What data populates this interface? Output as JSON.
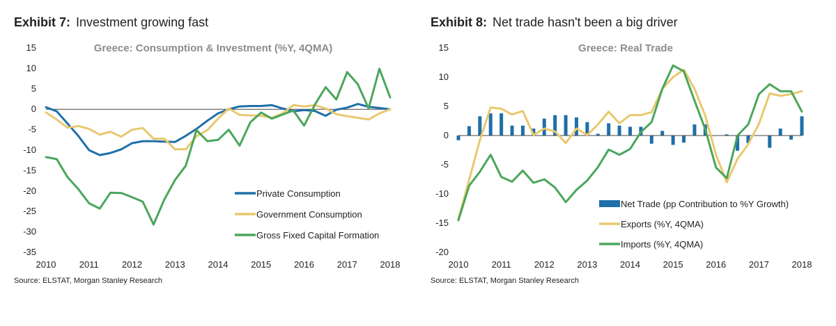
{
  "exhibits": [
    {
      "number": "Exhibit 7:",
      "heading": "Investment growing fast",
      "source": "Source: ELSTAT, Morgan Stanley Research"
    },
    {
      "number": "Exhibit 8:",
      "heading": "Net trade hasn't been a big driver",
      "source": "Source: ELSTAT, Morgan Stanley Research"
    }
  ],
  "chart_data": [
    {
      "type": "line",
      "title": "Greece: Consumption & Investment (%Y, 4QMA)",
      "xlabel": "",
      "ylabel": "",
      "xlim": [
        2010,
        2018
      ],
      "ylim": [
        -35,
        15
      ],
      "x_ticks": [
        "2010",
        "2011",
        "2012",
        "2013",
        "2014",
        "2015",
        "2016",
        "2017",
        "2018"
      ],
      "y_ticks": [
        "15",
        "10",
        "5",
        "0",
        "-5",
        "-10",
        "-15",
        "-20",
        "-25",
        "-30",
        "-35"
      ],
      "grid": false,
      "legend_position": "bottom-right",
      "x": [
        2010,
        2010.25,
        2010.5,
        2010.75,
        2011,
        2011.25,
        2011.5,
        2011.75,
        2012,
        2012.25,
        2012.5,
        2012.75,
        2013,
        2013.25,
        2013.5,
        2013.75,
        2014,
        2014.25,
        2014.5,
        2014.75,
        2015,
        2015.25,
        2015.5,
        2015.75,
        2016,
        2016.25,
        2016.5,
        2016.75,
        2017,
        2017.25,
        2017.5,
        2017.75,
        2018
      ],
      "series": [
        {
          "name": "Private Consumption",
          "color": "#1f6fa8",
          "values": [
            0.5,
            -0.5,
            -3.5,
            -6.5,
            -10,
            -11.2,
            -10.7,
            -9.8,
            -8.3,
            -7.8,
            -7.8,
            -7.9,
            -8,
            -6.5,
            -4.8,
            -2.8,
            -1,
            0,
            0.7,
            0.8,
            0.8,
            1,
            0.2,
            -0.5,
            -0.2,
            -0.4,
            -1.6,
            -0.1,
            0.4,
            1.3,
            0.6,
            0.3,
            0
          ]
        },
        {
          "name": "Government Consumption",
          "color": "#e8c86e",
          "values": [
            -0.8,
            -2.5,
            -4.5,
            -4.1,
            -4.8,
            -6.2,
            -5.5,
            -6.7,
            -5,
            -4.6,
            -7.2,
            -7.2,
            -9.8,
            -9.8,
            -6.6,
            -5.1,
            -2.3,
            0.2,
            -1.4,
            -1.5,
            -1.6,
            -2.1,
            -1,
            1,
            0.7,
            1,
            0.2,
            -1.2,
            -1.7,
            -2.1,
            -2.5,
            -1,
            0
          ]
        },
        {
          "name": "Gross Fixed Capital Formation",
          "color": "#4aa65b",
          "values": [
            -11.7,
            -12.2,
            -16.6,
            -19.5,
            -23,
            -24.3,
            -20.4,
            -20.5,
            -21.5,
            -22.6,
            -28.2,
            -22.1,
            -17.3,
            -13.8,
            -5.1,
            -7.8,
            -7.5,
            -5,
            -8.9,
            -3.2,
            -0.8,
            -2.3,
            -1.3,
            -0.3,
            -4,
            1.1,
            5.4,
            2.4,
            9.1,
            6.1,
            0.2,
            9.9,
            2.9
          ]
        }
      ]
    },
    {
      "type": "bar+line",
      "title": "Greece: Real Trade",
      "xlabel": "",
      "ylabel": "",
      "xlim": [
        2010,
        2018
      ],
      "ylim": [
        -20,
        15
      ],
      "x_ticks": [
        "2010",
        "2011",
        "2012",
        "2013",
        "2014",
        "2015",
        "2016",
        "2017",
        "2018"
      ],
      "y_ticks": [
        "15",
        "10",
        "5",
        "0",
        "-5",
        "-10",
        "-15",
        "-20"
      ],
      "grid": false,
      "legend_position": "bottom-right",
      "x": [
        2010,
        2010.25,
        2010.5,
        2010.75,
        2011,
        2011.25,
        2011.5,
        2011.75,
        2012,
        2012.25,
        2012.5,
        2012.75,
        2013,
        2013.25,
        2013.5,
        2013.75,
        2014,
        2014.25,
        2014.5,
        2014.75,
        2015,
        2015.25,
        2015.5,
        2015.75,
        2016,
        2016.25,
        2016.5,
        2016.75,
        2017,
        2017.25,
        2017.5,
        2017.75,
        2018
      ],
      "series": [
        {
          "name": "Net Trade (pp Contribution to %Y Growth)",
          "kind": "bar",
          "color": "#1f6fa8",
          "values": [
            -0.8,
            1.6,
            3.3,
            3.8,
            3.8,
            1.7,
            1.7,
            1.2,
            2.9,
            3.5,
            3.5,
            3.1,
            2.3,
            0.3,
            2.1,
            1.7,
            1.5,
            1.5,
            -1.4,
            0.8,
            -1.6,
            -1.2,
            1.9,
            1.9,
            0,
            0.2,
            -2.6,
            -1.3,
            0,
            -2.1,
            1.2,
            -0.7,
            3.3
          ]
        },
        {
          "name": "Exports (%Y, 4QMA)",
          "kind": "line",
          "color": "#e8c86e",
          "values": [
            -14.3,
            -7.6,
            -0.8,
            4.8,
            4.6,
            3.6,
            4.2,
            0.1,
            1.2,
            0.7,
            -1.3,
            1.2,
            0.1,
            1.9,
            4.1,
            2.1,
            3.5,
            3.5,
            4,
            8,
            10,
            11.3,
            8,
            3.4,
            -3.3,
            -8,
            -4,
            -1.5,
            2,
            7.2,
            6.8,
            7.1,
            7.6
          ]
        },
        {
          "name": "Imports (%Y, 4QMA)",
          "kind": "line",
          "color": "#4aa65b",
          "values": [
            -14.5,
            -8.6,
            -6.2,
            -3.3,
            -7.1,
            -7.9,
            -6,
            -8.1,
            -7.5,
            -8.9,
            -11.4,
            -9.3,
            -7.7,
            -5.4,
            -2.4,
            -3.3,
            -2.3,
            0.6,
            2.3,
            8,
            12,
            11,
            6,
            1.1,
            -5.5,
            -7.3,
            0,
            1.9,
            7.1,
            8.8,
            7.6,
            7.6,
            4.1
          ]
        }
      ]
    }
  ]
}
